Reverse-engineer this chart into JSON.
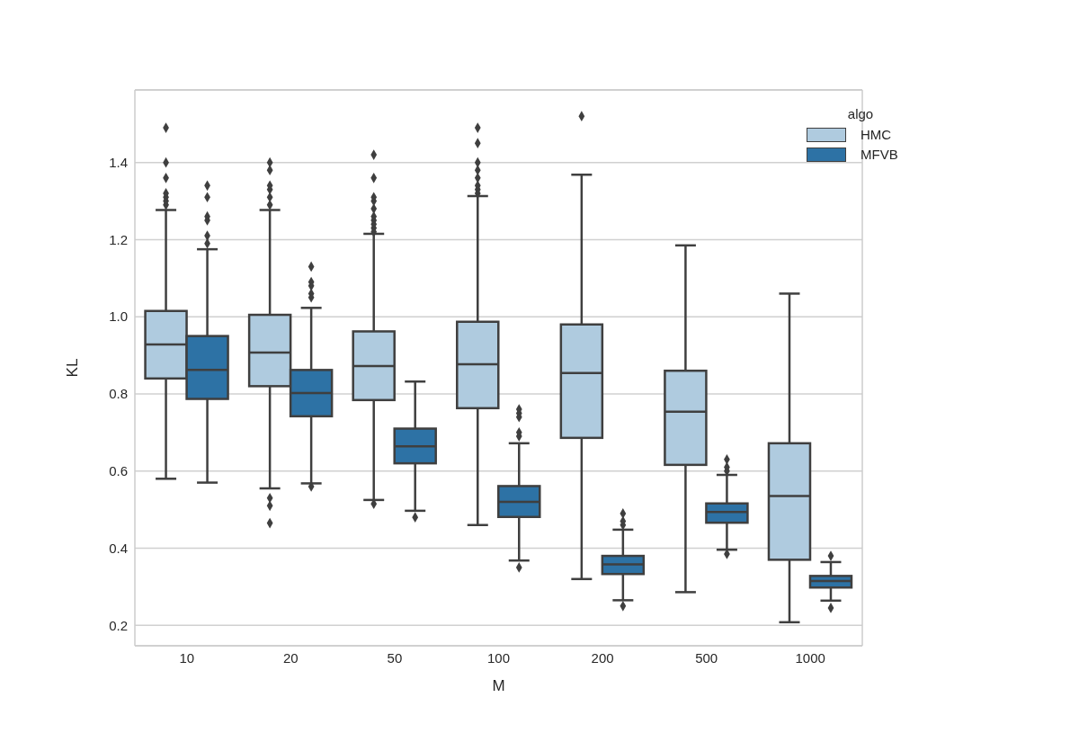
{
  "chart_data": {
    "type": "box",
    "xlabel": "M",
    "ylabel": "KL",
    "legend_title": "algo",
    "legend": "top right",
    "grid": "y",
    "marker": "diamond",
    "categories": [
      "10",
      "20",
      "50",
      "100",
      "200",
      "500",
      "1000"
    ],
    "ylim": [
      0.147,
      1.588
    ],
    "yticks": [
      0.2,
      0.4,
      0.6,
      0.8,
      {
        "value": 1,
        "label": "1.0"
      },
      1.2,
      1.4
    ],
    "series": [
      {
        "name": "HMC",
        "color": "#afcbdf",
        "boxes": [
          {
            "low": 0.58,
            "q1": 0.84,
            "median": 0.928,
            "q3": 1.015,
            "high": 1.277,
            "outliers": [
              1.29,
              1.3,
              1.31,
              1.32,
              1.36,
              1.4,
              1.49
            ]
          },
          {
            "low": 0.555,
            "q1": 0.82,
            "median": 0.907,
            "q3": 1.005,
            "high": 1.277,
            "outliers": [
              1.29,
              1.31,
              1.33,
              1.34,
              1.38,
              1.4,
              0.53,
              0.51,
              0.465
            ]
          },
          {
            "low": 0.525,
            "q1": 0.784,
            "median": 0.872,
            "q3": 0.962,
            "high": 1.215,
            "outliers": [
              1.22,
              1.23,
              1.24,
              1.25,
              1.26,
              1.28,
              1.3,
              1.31,
              1.36,
              1.42,
              0.515
            ]
          },
          {
            "low": 0.46,
            "q1": 0.763,
            "median": 0.877,
            "q3": 0.987,
            "high": 1.313,
            "outliers": [
              1.32,
              1.33,
              1.34,
              1.36,
              1.38,
              1.4,
              1.45,
              1.49
            ]
          },
          {
            "low": 0.32,
            "q1": 0.686,
            "median": 0.854,
            "q3": 0.98,
            "high": 1.368,
            "outliers": [
              1.52
            ]
          },
          {
            "low": 0.286,
            "q1": 0.616,
            "median": 0.754,
            "q3": 0.86,
            "high": 1.185
          },
          {
            "low": 0.208,
            "q1": 0.37,
            "median": 0.535,
            "q3": 0.672,
            "high": 1.06
          }
        ]
      },
      {
        "name": "MFVB",
        "color": "#2d72a5",
        "boxes": [
          {
            "low": 0.57,
            "q1": 0.787,
            "median": 0.862,
            "q3": 0.95,
            "high": 1.175,
            "outliers": [
              1.19,
              1.21,
              1.25,
              1.26,
              1.31,
              1.34
            ]
          },
          {
            "low": 0.568,
            "q1": 0.742,
            "median": 0.802,
            "q3": 0.862,
            "high": 1.023,
            "outliers": [
              1.05,
              1.06,
              1.08,
              1.09,
              1.13,
              0.56
            ]
          },
          {
            "low": 0.497,
            "q1": 0.62,
            "median": 0.664,
            "q3": 0.71,
            "high": 0.832,
            "outliers": [
              0.48
            ]
          },
          {
            "low": 0.368,
            "q1": 0.481,
            "median": 0.52,
            "q3": 0.561,
            "high": 0.672,
            "outliers": [
              0.69,
              0.7,
              0.74,
              0.75,
              0.76,
              0.35
            ]
          },
          {
            "low": 0.265,
            "q1": 0.333,
            "median": 0.358,
            "q3": 0.38,
            "high": 0.448,
            "outliers": [
              0.46,
              0.47,
              0.49,
              0.25
            ]
          },
          {
            "low": 0.396,
            "q1": 0.466,
            "median": 0.494,
            "q3": 0.516,
            "high": 0.59,
            "outliers": [
              0.6,
              0.61,
              0.63,
              0.385
            ]
          },
          {
            "low": 0.264,
            "q1": 0.298,
            "median": 0.315,
            "q3": 0.328,
            "high": 0.364,
            "outliers": [
              0.38,
              0.245
            ]
          }
        ]
      }
    ]
  }
}
